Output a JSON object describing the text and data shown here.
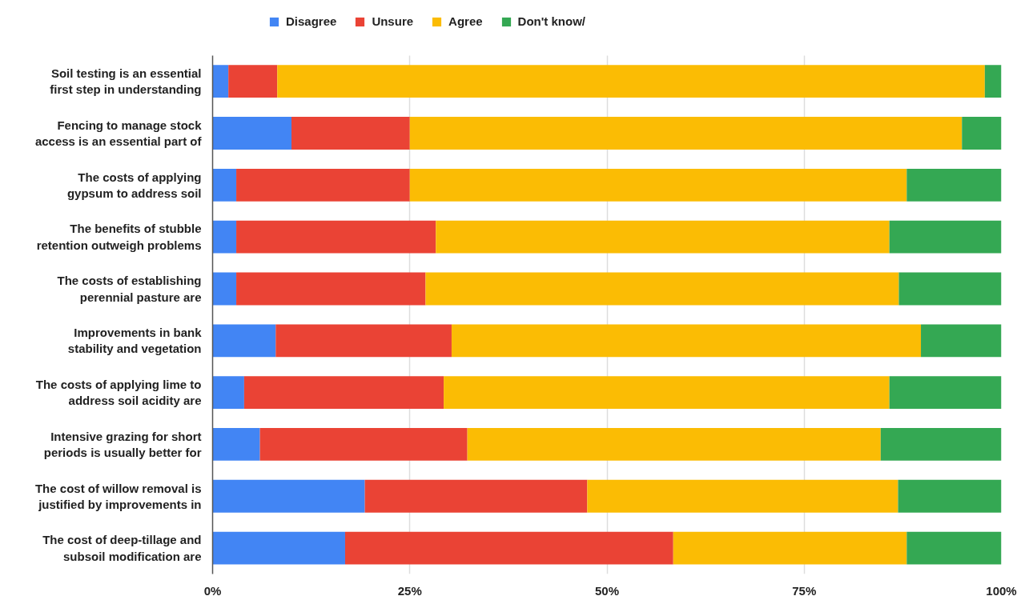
{
  "chart_data": {
    "type": "bar",
    "orientation": "horizontal",
    "stacked": true,
    "categories": [
      "Soil testing is an essential\nfirst step in understanding",
      "Fencing to manage stock\naccess is an essential part of",
      "The costs of applying\ngypsum to address soil",
      "The benefits of stubble\nretention outweigh problems",
      "The costs of establishing\nperennial pasture are",
      "Improvements in bank\nstability and vegetation",
      "The costs of applying lime to\naddress soil acidity are",
      "Intensive grazing for short\nperiods is usually better for",
      "The cost of willow removal is\njustified by improvements in",
      "The cost of deep-tillage and\nsubsoil modification are"
    ],
    "series": [
      {
        "name": "Disagree",
        "color": "#4285f4",
        "values": [
          2,
          10,
          3,
          3,
          3,
          8,
          4,
          6,
          19.3,
          16.8
        ]
      },
      {
        "name": "Unsure",
        "color": "#ea4335",
        "values": [
          6.2,
          15,
          22,
          25.3,
          24,
          22.3,
          25.3,
          26.3,
          28.2,
          41.6
        ]
      },
      {
        "name": "Agree",
        "color": "#fbbc04",
        "values": [
          89.7,
          70,
          63,
          57.5,
          60,
          59.5,
          56.5,
          52.4,
          39.4,
          29.6
        ]
      },
      {
        "name": "Don't know/",
        "color": "#34a853",
        "values": [
          2.1,
          5,
          12,
          14.2,
          13,
          10.2,
          14.2,
          15.3,
          13.1,
          12
        ]
      }
    ],
    "xlim": [
      0,
      100
    ],
    "xticks": [
      {
        "value": 0,
        "label": "0%"
      },
      {
        "value": 25,
        "label": "25%"
      },
      {
        "value": 50,
        "label": "50%"
      },
      {
        "value": 75,
        "label": "75%"
      },
      {
        "value": 100,
        "label": "100%"
      }
    ],
    "grid": "x",
    "legend": "top"
  }
}
